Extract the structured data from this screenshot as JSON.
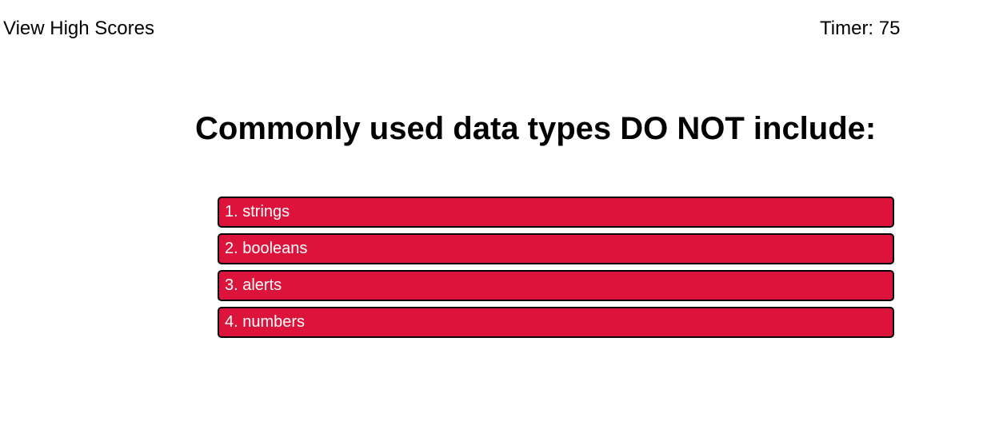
{
  "header": {
    "high_scores_label": "View High Scores",
    "timer_label": "Timer: 75"
  },
  "quiz": {
    "question": "Commonly used data types DO NOT include:",
    "answers": [
      {
        "label": "1. strings"
      },
      {
        "label": "2. booleans"
      },
      {
        "label": "3. alerts"
      },
      {
        "label": "4. numbers"
      }
    ]
  },
  "colors": {
    "answer_background": "#dc143c",
    "answer_text": "#ffffff",
    "answer_border": "#000000"
  }
}
